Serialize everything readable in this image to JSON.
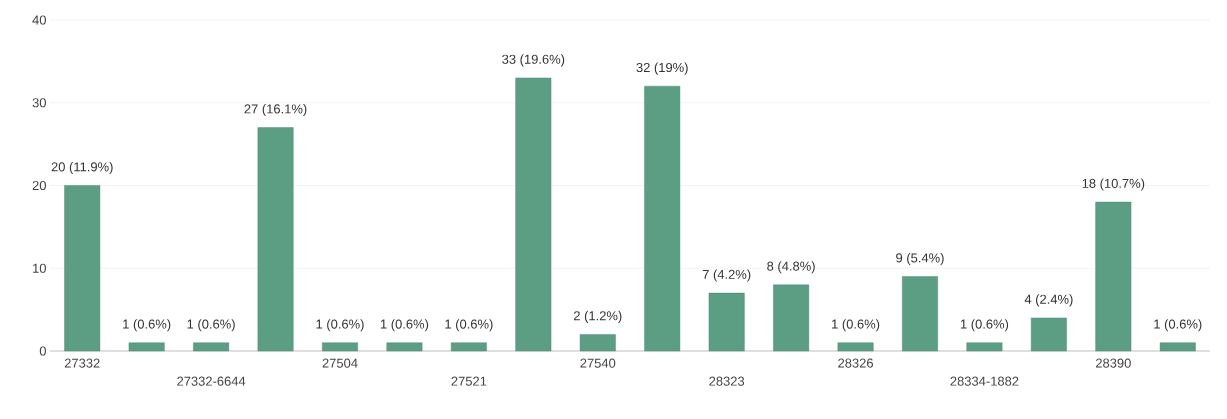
{
  "chart_data": {
    "type": "bar",
    "categories": [
      "27332",
      null,
      "27332-6644",
      null,
      "27504",
      null,
      "27521",
      null,
      "27540",
      null,
      "28323",
      null,
      "28326",
      null,
      "28334-1882",
      null,
      "28390",
      null
    ],
    "values": [
      20,
      1,
      1,
      27,
      1,
      1,
      1,
      33,
      2,
      32,
      7,
      8,
      1,
      9,
      1,
      4,
      18,
      1
    ],
    "value_labels": [
      "20 (11.9%)",
      "1 (0.6%)",
      "1 (0.6%)",
      "27 (16.1%)",
      "1 (0.6%)",
      "1 (0.6%)",
      "1 (0.6%)",
      "33 (19.6%)",
      "2 (1.2%)",
      "32 (19%)",
      "7 (4.2%)",
      "8 (4.8%)",
      "1 (0.6%)",
      "9 (5.4%)",
      "1 (0.6%)",
      "4 (2.4%)",
      "18 (10.7%)",
      "1 (0.6%)"
    ],
    "color": "#5b9e84",
    "ylim": [
      0,
      40
    ],
    "yticks": [
      0,
      10,
      20,
      30,
      40
    ],
    "grid": "y"
  }
}
